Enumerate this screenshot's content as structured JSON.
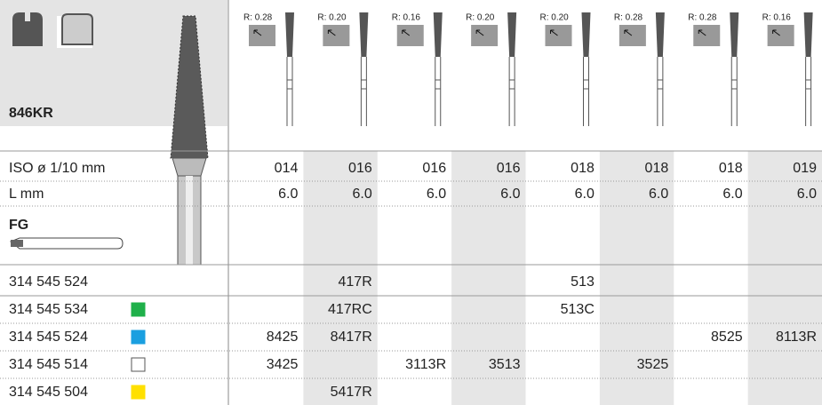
{
  "header": {
    "title": "846KR",
    "radii": [
      "R: 0.28",
      "R: 0.20",
      "R: 0.16",
      "R: 0.20",
      "R: 0.20",
      "R: 0.28",
      "R: 0.28",
      "R: 0.16"
    ]
  },
  "specs": [
    {
      "label": "ISO ø 1/10 mm",
      "values": [
        "014",
        "016",
        "016",
        "016",
        "018",
        "018",
        "018",
        "019"
      ]
    },
    {
      "label": "L mm",
      "values": [
        "6.0",
        "6.0",
        "6.0",
        "6.0",
        "6.0",
        "6.0",
        "6.0",
        "6.0"
      ]
    }
  ],
  "shank": "FG",
  "rows": [
    {
      "code": "314 545 524",
      "marker": null,
      "cells": [
        null,
        "417R",
        null,
        null,
        "513",
        null,
        null,
        null
      ]
    },
    {
      "code": "314 545 534",
      "marker": "#1fb04a",
      "cells": [
        null,
        "417RC",
        null,
        null,
        "513C",
        null,
        null,
        null
      ]
    },
    {
      "code": "314 545 524",
      "marker": "#1a9fe0",
      "cells": [
        "8425",
        "8417R",
        null,
        null,
        null,
        null,
        "8525",
        "8113R"
      ]
    },
    {
      "code": "314 545 514",
      "marker": "#ffffff",
      "cells": [
        "3425",
        null,
        "3113R",
        "3513",
        null,
        "3525",
        null,
        null
      ]
    },
    {
      "code": "314 545 504",
      "marker": "#ffe000",
      "cells": [
        null,
        "5417R",
        null,
        null,
        null,
        null,
        null,
        null
      ]
    }
  ]
}
